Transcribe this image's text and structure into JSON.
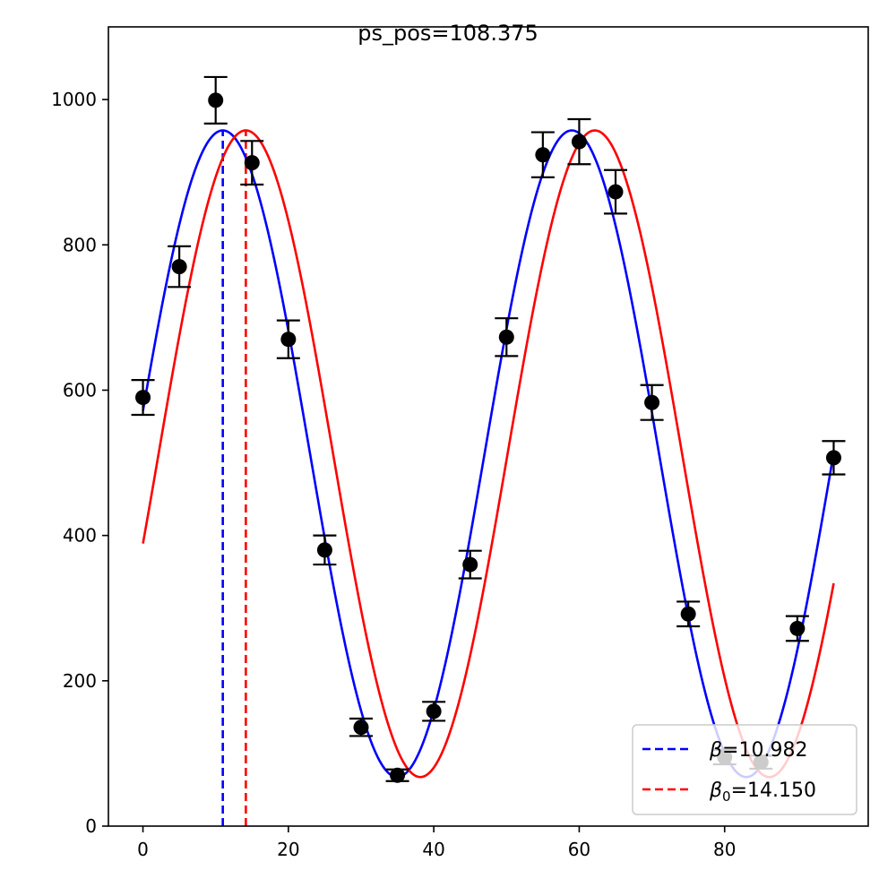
{
  "chart_data": {
    "type": "scatter",
    "title": "ps_pos=108.375",
    "xlabel": "",
    "ylabel": "",
    "xlim": [
      -4.75,
      99.75
    ],
    "ylim": [
      0,
      1100
    ],
    "xticks": [
      0,
      20,
      40,
      60,
      80
    ],
    "yticks": [
      0,
      200,
      400,
      600,
      800,
      1000
    ],
    "grid": false,
    "legend_position": "bottom-right",
    "points": {
      "x": [
        0,
        5,
        10,
        15,
        20,
        25,
        30,
        35,
        40,
        45,
        50,
        55,
        60,
        65,
        70,
        75,
        80,
        85,
        90,
        95
      ],
      "y": [
        590,
        770,
        999,
        913,
        670,
        380,
        136,
        70,
        158,
        360,
        673,
        924,
        942,
        873,
        583,
        292,
        95,
        88,
        272,
        507
      ],
      "err": [
        24,
        28,
        32,
        30,
        26,
        20,
        12,
        8,
        13,
        19,
        26,
        31,
        31,
        30,
        24,
        17,
        10,
        9,
        17,
        23
      ],
      "color": "#000000"
    },
    "series": [
      {
        "name": "β=10.982",
        "kind": "fit",
        "color": "#0000ff",
        "amplitude": 445,
        "offset": 512.5,
        "period": 48,
        "peak_x": 10.982,
        "x_range": [
          0,
          95
        ]
      },
      {
        "name": "β₀=14.150",
        "kind": "fit",
        "color": "#ff0000",
        "amplitude": 445,
        "offset": 512.5,
        "period": 48,
        "peak_x": 14.15,
        "x_range": [
          0,
          95
        ]
      }
    ],
    "vlines": [
      {
        "x": 10.982,
        "color": "#0000ff",
        "style": "dashed"
      },
      {
        "x": 14.15,
        "color": "#ff0000",
        "style": "dashed"
      }
    ],
    "legend": [
      {
        "symbol": "β",
        "subscript": "",
        "value": "=10.982",
        "color": "#0000ff"
      },
      {
        "symbol": "β",
        "subscript": "0",
        "value": "=14.150",
        "color": "#ff0000"
      }
    ]
  }
}
